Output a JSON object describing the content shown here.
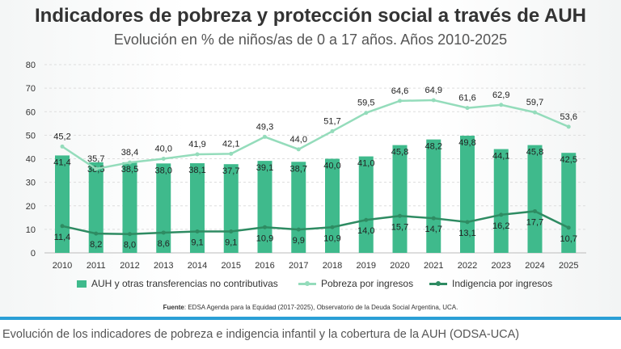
{
  "chart_data": {
    "type": "bar+line",
    "title": "Indicadores de pobreza y protección social a través de AUH",
    "subtitle": "Evolución en % de niños/as de 0 a 17 años. Años 2010-2025",
    "categories": [
      "2010",
      "2011",
      "2012",
      "2013",
      "2014",
      "2015",
      "2016",
      "2017",
      "2018",
      "2019",
      "2020",
      "2021",
      "2022",
      "2023",
      "2024",
      "2025"
    ],
    "ylim": [
      0,
      80
    ],
    "yticks": [
      0,
      10,
      20,
      30,
      40,
      50,
      60,
      70,
      80
    ],
    "grid": true,
    "legend_position": "bottom",
    "series": [
      {
        "name": "AUH y otras transferencias no contributivas",
        "kind": "bar",
        "color": "#3fba8c",
        "values": [
          41.4,
          38.5,
          38.5,
          38.0,
          38.1,
          37.7,
          39.1,
          38.7,
          40.0,
          41.0,
          45.8,
          48.2,
          49.8,
          44.1,
          45.8,
          42.5
        ]
      },
      {
        "name": "Pobreza por ingresos",
        "kind": "line",
        "color": "#94dcbb",
        "values": [
          45.2,
          35.7,
          38.4,
          40.0,
          41.9,
          42.1,
          49.3,
          44.0,
          51.7,
          59.5,
          64.6,
          64.9,
          61.6,
          62.9,
          59.7,
          53.6
        ]
      },
      {
        "name": "Indigencia por ingresos",
        "kind": "line",
        "color": "#2e8b62",
        "values": [
          11.4,
          8.2,
          8.0,
          8.6,
          9.1,
          9.1,
          10.9,
          9.9,
          10.9,
          14.0,
          15.7,
          14.7,
          13.1,
          16.2,
          17.7,
          10.7
        ]
      }
    ]
  },
  "source": {
    "label": "Fuente",
    "text": ": EDSA Agenda para la Equidad (2017-2025), Observatorio de la Deuda Social Argentina, UCA."
  },
  "caption": "Evolución de los indicadores de pobreza e indigencia infantil y la cobertura de la AUH (ODSA-UCA)"
}
